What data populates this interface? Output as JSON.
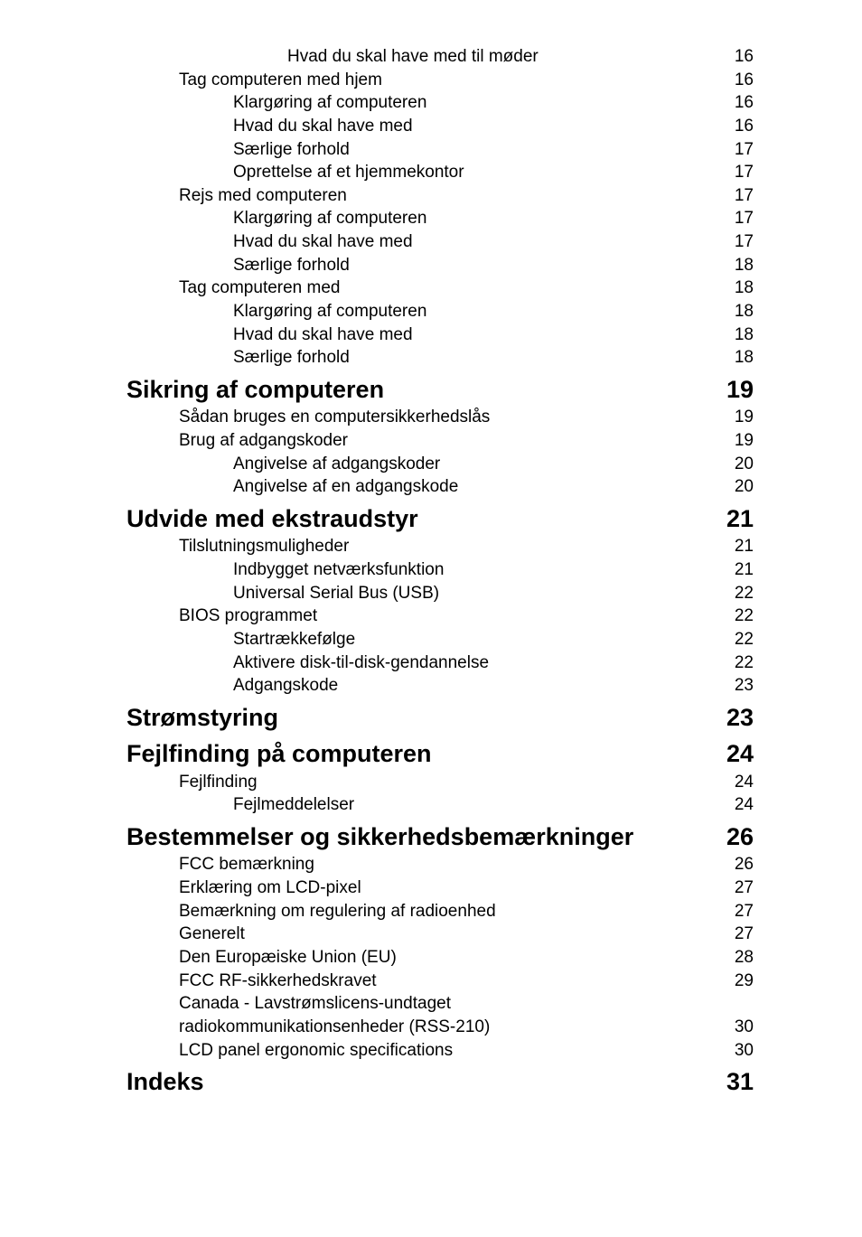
{
  "toc": [
    {
      "label": "Hvad du skal have med til møder",
      "page": "16",
      "level": 3
    },
    {
      "label": "Tag computeren med hjem",
      "page": "16",
      "level": 1
    },
    {
      "label": "Klargøring af computeren",
      "page": "16",
      "level": 2
    },
    {
      "label": "Hvad du skal have med",
      "page": "16",
      "level": 2
    },
    {
      "label": "Særlige forhold",
      "page": "17",
      "level": 2
    },
    {
      "label": "Oprettelse af et hjemmekontor",
      "page": "17",
      "level": 2
    },
    {
      "label": "Rejs med computeren",
      "page": "17",
      "level": 1
    },
    {
      "label": "Klargøring af computeren",
      "page": "17",
      "level": 2
    },
    {
      "label": "Hvad du skal have med",
      "page": "17",
      "level": 2
    },
    {
      "label": "Særlige forhold",
      "page": "18",
      "level": 2
    },
    {
      "label": "Tag computeren med",
      "page": "18",
      "level": 1
    },
    {
      "label": "Klargøring af computeren",
      "page": "18",
      "level": 2
    },
    {
      "label": "Hvad du skal have med",
      "page": "18",
      "level": 2
    },
    {
      "label": "Særlige forhold",
      "page": "18",
      "level": 2
    },
    {
      "label": "Sikring af computeren",
      "page": "19",
      "level": 0
    },
    {
      "label": "Sådan bruges en computersikkerhedslås",
      "page": "19",
      "level": 1
    },
    {
      "label": "Brug af adgangskoder",
      "page": "19",
      "level": 1
    },
    {
      "label": "Angivelse af adgangskoder",
      "page": "20",
      "level": 2
    },
    {
      "label": "Angivelse af en adgangskode",
      "page": "20",
      "level": 2
    },
    {
      "label": "Udvide med ekstraudstyr",
      "page": "21",
      "level": 0
    },
    {
      "label": "Tilslutningsmuligheder",
      "page": "21",
      "level": 1
    },
    {
      "label": "Indbygget netværksfunktion",
      "page": "21",
      "level": 2
    },
    {
      "label": "Universal Serial Bus (USB)",
      "page": "22",
      "level": 2
    },
    {
      "label": "BIOS programmet",
      "page": "22",
      "level": 1
    },
    {
      "label": "Startrækkefølge",
      "page": "22",
      "level": 2
    },
    {
      "label": "Aktivere disk-til-disk-gendannelse",
      "page": "22",
      "level": 2
    },
    {
      "label": "Adgangskode",
      "page": "23",
      "level": 2
    },
    {
      "label": "Strømstyring",
      "page": "23",
      "level": 0
    },
    {
      "label": "Fejlfinding på computeren",
      "page": "24",
      "level": 0
    },
    {
      "label": "Fejlfinding",
      "page": "24",
      "level": 1
    },
    {
      "label": "Fejlmeddelelser",
      "page": "24",
      "level": 2
    },
    {
      "label": "Bestemmelser og sikkerhedsbemærkninger",
      "page": "26",
      "level": 0
    },
    {
      "label": "FCC bemærkning",
      "page": "26",
      "level": 1
    },
    {
      "label": "Erklæring om LCD-pixel",
      "page": "27",
      "level": 1
    },
    {
      "label": "Bemærkning om regulering af radioenhed",
      "page": "27",
      "level": 1
    },
    {
      "label": "Generelt",
      "page": "27",
      "level": 1
    },
    {
      "label": "Den Europæiske Union (EU)",
      "page": "28",
      "level": 1
    },
    {
      "label": "FCC RF-sikkerhedskravet",
      "page": "29",
      "level": 1
    },
    {
      "label": "Canada - Lavstrømslicens-undtaget",
      "page": "",
      "level": 1
    },
    {
      "label": "radiokommunikationsenheder (RSS-210)",
      "page": "30",
      "level": 1
    },
    {
      "label": "LCD panel ergonomic specifications",
      "page": "30",
      "level": 1
    },
    {
      "label": "Indeks",
      "page": "31",
      "level": 0
    }
  ]
}
